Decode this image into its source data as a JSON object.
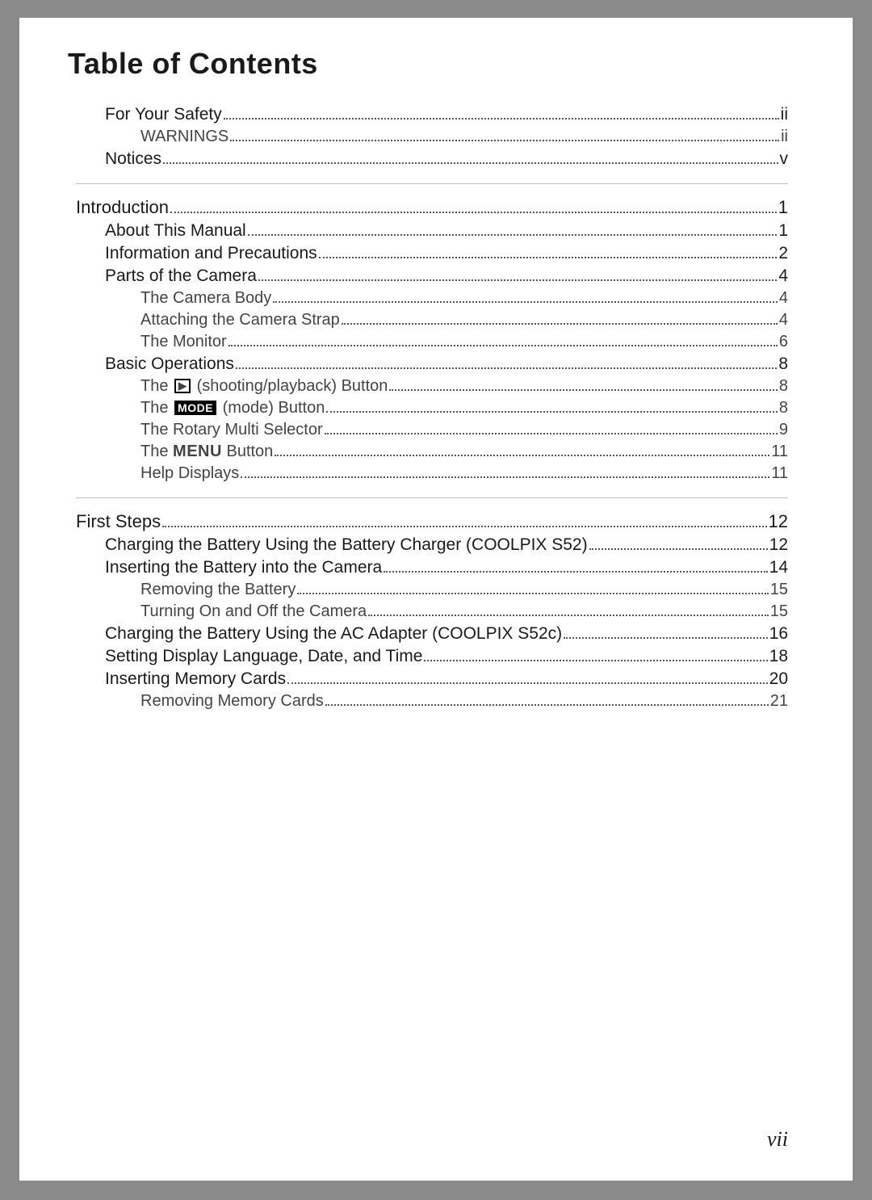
{
  "title": "Table of Contents",
  "page_number": "vii",
  "colors": {
    "page_bg": "#ffffff",
    "outer_bg": "#8a8a8a",
    "text": "#1a1a1a",
    "divider": "#bfbfbf"
  },
  "sections": [
    {
      "items": [
        {
          "level": 1,
          "label": "For Your Safety",
          "page": "ii"
        },
        {
          "level": 2,
          "label": "WARNINGS",
          "page": "ii"
        },
        {
          "level": 1,
          "label": "Notices",
          "page": "v"
        }
      ]
    },
    {
      "items": [
        {
          "level": 0,
          "label": "Introduction",
          "page": "1"
        },
        {
          "level": 1,
          "label": "About This Manual",
          "page": "1"
        },
        {
          "level": 1,
          "label": "Information and Precautions",
          "page": "2"
        },
        {
          "level": 1,
          "label": "Parts of the Camera",
          "page": "4"
        },
        {
          "level": 2,
          "label": "The Camera Body",
          "page": "4"
        },
        {
          "level": 2,
          "label": "Attaching the Camera Strap",
          "page": "4"
        },
        {
          "level": 2,
          "label": "The Monitor",
          "page": "6"
        },
        {
          "level": 1,
          "label": "Basic Operations",
          "page": "8"
        },
        {
          "level": 2,
          "label_pre": "The ",
          "icon": "playback",
          "label_post": " (shooting/playback) Button",
          "page": "8"
        },
        {
          "level": 2,
          "label_pre": "The ",
          "icon": "mode",
          "label_post": " (mode) Button",
          "page": "8"
        },
        {
          "level": 2,
          "label": "The Rotary Multi Selector",
          "page": "9"
        },
        {
          "level": 2,
          "label_pre": "The ",
          "icon": "menu",
          "label_post": " Button",
          "page": "11"
        },
        {
          "level": 2,
          "label": "Help Displays",
          "page": "11"
        }
      ]
    },
    {
      "items": [
        {
          "level": 0,
          "label": "First Steps",
          "page": "12"
        },
        {
          "level": 1,
          "label": "Charging the Battery Using the Battery Charger (COOLPIX S52)",
          "page": "12"
        },
        {
          "level": 1,
          "label": "Inserting the Battery into the Camera",
          "page": "14"
        },
        {
          "level": 2,
          "label": "Removing the Battery",
          "page": "15"
        },
        {
          "level": 2,
          "label": "Turning On and Off the Camera",
          "page": "15"
        },
        {
          "level": 1,
          "label": "Charging the Battery Using the AC Adapter (COOLPIX S52c)",
          "page": "16"
        },
        {
          "level": 1,
          "label": "Setting Display Language, Date, and Time",
          "page": "18"
        },
        {
          "level": 1,
          "label": "Inserting Memory Cards",
          "page": "20"
        },
        {
          "level": 2,
          "label": "Removing Memory Cards",
          "page": "21"
        }
      ]
    }
  ],
  "icons": {
    "playback": "▶",
    "mode": "MODE",
    "menu": "MENU"
  }
}
